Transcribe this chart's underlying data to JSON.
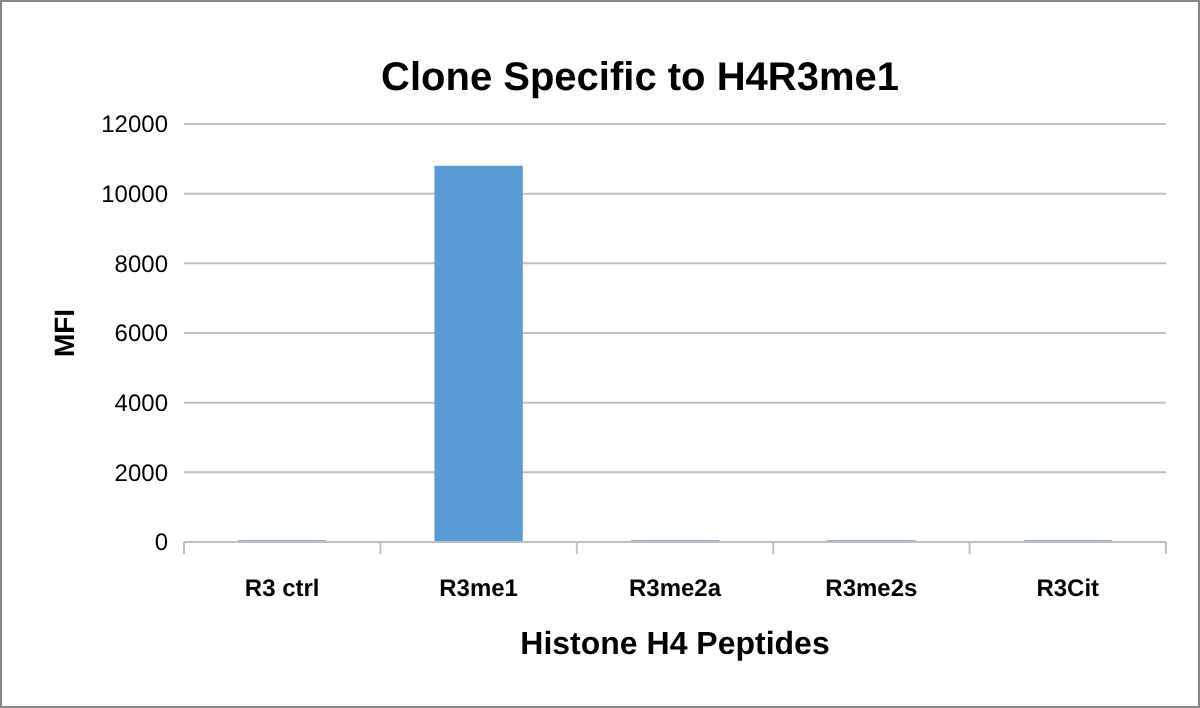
{
  "chart_data": {
    "type": "bar",
    "title": "Clone Specific to H4R3me1",
    "xlabel": "Histone H4 Peptides",
    "ylabel": "MFI",
    "categories": [
      "R3 ctrl",
      "R3me1",
      "R3me2a",
      "R3me2s",
      "R3Cit"
    ],
    "values": [
      50,
      10800,
      50,
      50,
      50
    ],
    "color": "#5b9bd5",
    "ylim": [
      0,
      12000
    ],
    "yticks": [
      0,
      2000,
      4000,
      6000,
      8000,
      10000,
      12000
    ],
    "grid": "y"
  }
}
